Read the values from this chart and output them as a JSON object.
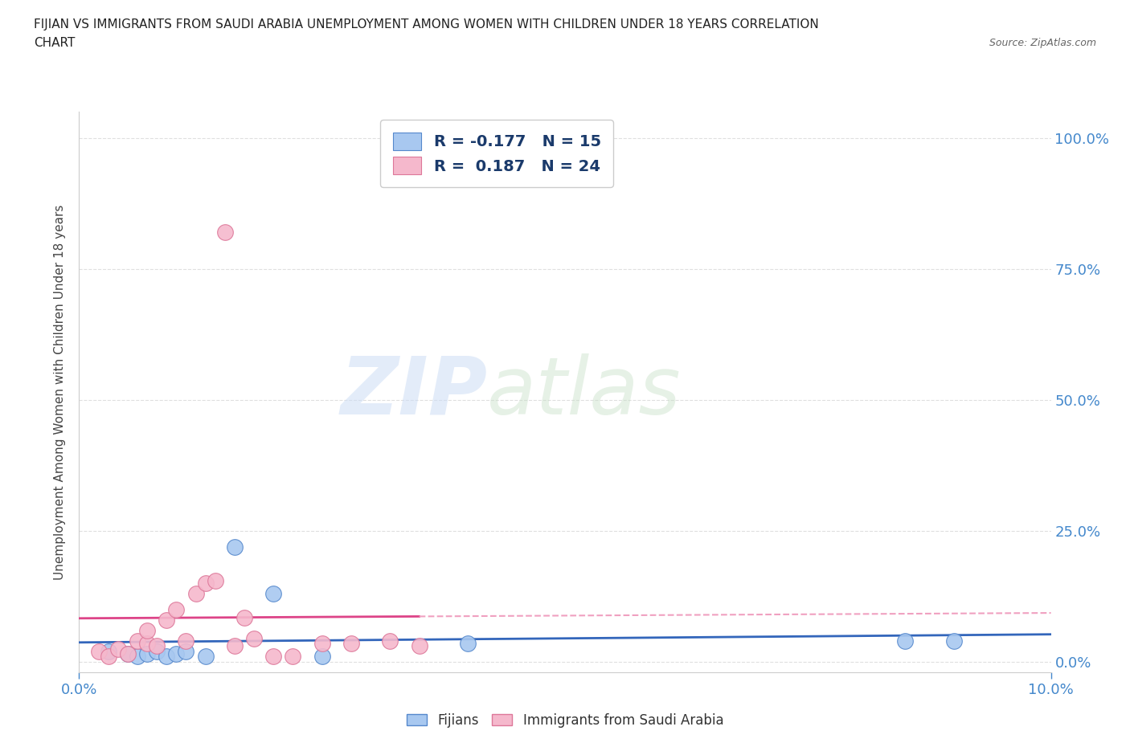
{
  "title_line1": "FIJIAN VS IMMIGRANTS FROM SAUDI ARABIA UNEMPLOYMENT AMONG WOMEN WITH CHILDREN UNDER 18 YEARS CORRELATION",
  "title_line2": "CHART",
  "source": "Source: ZipAtlas.com",
  "ylabel": "Unemployment Among Women with Children Under 18 years",
  "ytick_labels": [
    "100.0%",
    "75.0%",
    "50.0%",
    "25.0%",
    "0.0%"
  ],
  "ytick_values": [
    1.0,
    0.75,
    0.5,
    0.25,
    0.0
  ],
  "xlim": [
    0.0,
    0.1
  ],
  "ylim": [
    -0.02,
    1.05
  ],
  "blue_color": "#a8c8f0",
  "pink_color": "#f5b8cc",
  "blue_edge_color": "#5588cc",
  "pink_edge_color": "#dd7799",
  "blue_trend_solid": "#3366bb",
  "pink_trend_solid": "#dd4488",
  "pink_trend_dash": "#f0a0c0",
  "fijians_R": -0.177,
  "fijians_N": 15,
  "saudi_R": 0.187,
  "saudi_N": 24,
  "legend_label_fijians": "Fijians",
  "legend_label_saudi": "Immigrants from Saudi Arabia",
  "watermark_zip": "ZIP",
  "watermark_atlas": "atlas",
  "fijians_x": [
    0.003,
    0.005,
    0.006,
    0.007,
    0.008,
    0.009,
    0.01,
    0.011,
    0.013,
    0.016,
    0.02,
    0.025,
    0.04,
    0.085,
    0.09
  ],
  "fijians_y": [
    0.02,
    0.015,
    0.01,
    0.015,
    0.02,
    0.01,
    0.015,
    0.02,
    0.01,
    0.22,
    0.13,
    0.01,
    0.035,
    0.04,
    0.04
  ],
  "saudi_x": [
    0.002,
    0.003,
    0.004,
    0.005,
    0.006,
    0.007,
    0.007,
    0.008,
    0.009,
    0.01,
    0.011,
    0.012,
    0.013,
    0.014,
    0.015,
    0.016,
    0.017,
    0.018,
    0.02,
    0.022,
    0.025,
    0.028,
    0.032,
    0.035
  ],
  "saudi_y": [
    0.02,
    0.01,
    0.025,
    0.015,
    0.04,
    0.035,
    0.06,
    0.03,
    0.08,
    0.1,
    0.04,
    0.13,
    0.15,
    0.155,
    0.82,
    0.03,
    0.085,
    0.045,
    0.01,
    0.01,
    0.035,
    0.035,
    0.04,
    0.03
  ],
  "background_color": "#ffffff",
  "grid_color": "#d8d8d8",
  "axis_color": "#cccccc",
  "title_color": "#222222",
  "source_color": "#666666",
  "legend_text_color": "#1a3a6b",
  "right_tick_color": "#4488cc",
  "xtick_color": "#4488cc"
}
